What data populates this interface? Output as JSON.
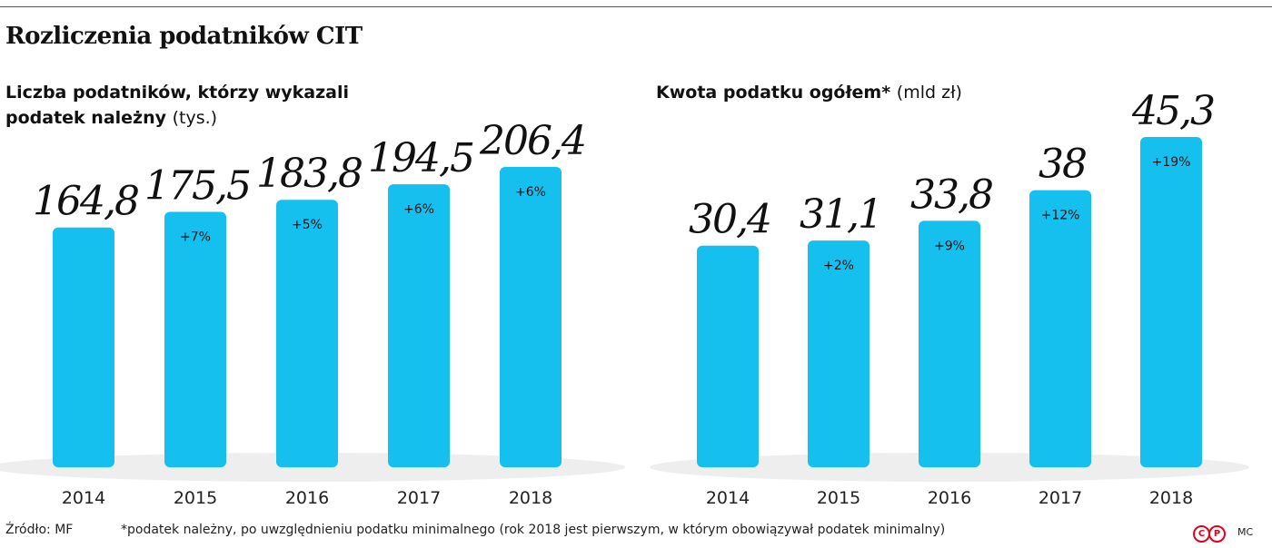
{
  "title": "Rozliczenia podatników CIT",
  "chart_data": [
    {
      "type": "bar",
      "title": "Liczba podatników, którzy wykazali podatek należny",
      "unit": "(tys.)",
      "categories": [
        "2014",
        "2015",
        "2016",
        "2017",
        "2018"
      ],
      "values": [
        164.8,
        175.5,
        183.8,
        194.5,
        206.4
      ],
      "value_labels": [
        "164,8",
        "175,5",
        "183,8",
        "194,5",
        "206,4"
      ],
      "change_labels": [
        "",
        "+7%",
        "+5%",
        "+6%",
        "+6%"
      ],
      "xlabel": "",
      "ylabel": "",
      "grid": false,
      "bar_color": "#16c0ee"
    },
    {
      "type": "bar",
      "title": "Kwota podatku ogółem*",
      "unit": "(mld zł)",
      "categories": [
        "2014",
        "2015",
        "2016",
        "2017",
        "2018"
      ],
      "values": [
        30.4,
        31.1,
        33.8,
        38,
        45.3
      ],
      "value_labels": [
        "30,4",
        "31,1",
        "33,8",
        "38",
        "45,3"
      ],
      "change_labels": [
        "",
        "+2%",
        "+9%",
        "+12%",
        "+19%"
      ],
      "xlabel": "",
      "ylabel": "",
      "grid": false,
      "bar_color": "#16c0ee"
    }
  ],
  "left_title": {
    "line1": "Liczba podatników, którzy wykazali",
    "line2": "podatek należny",
    "unit": "(tys.)"
  },
  "right_title": {
    "main": "Kwota podatku ogółem*",
    "unit": "(mld zł)"
  },
  "footer": {
    "source": "Źródło: MF",
    "footnote": "*podatek należny, po uwzględnieniu podatku minimalnego (rok 2018 jest pierwszym, w którym obowiązywał podatek minimalny)",
    "logo_c": "C",
    "logo_p": "P",
    "author": "MC"
  },
  "colors": {
    "bar": "#16c0ee",
    "shadow": "#eeeeee",
    "logo": "#e3001b"
  }
}
